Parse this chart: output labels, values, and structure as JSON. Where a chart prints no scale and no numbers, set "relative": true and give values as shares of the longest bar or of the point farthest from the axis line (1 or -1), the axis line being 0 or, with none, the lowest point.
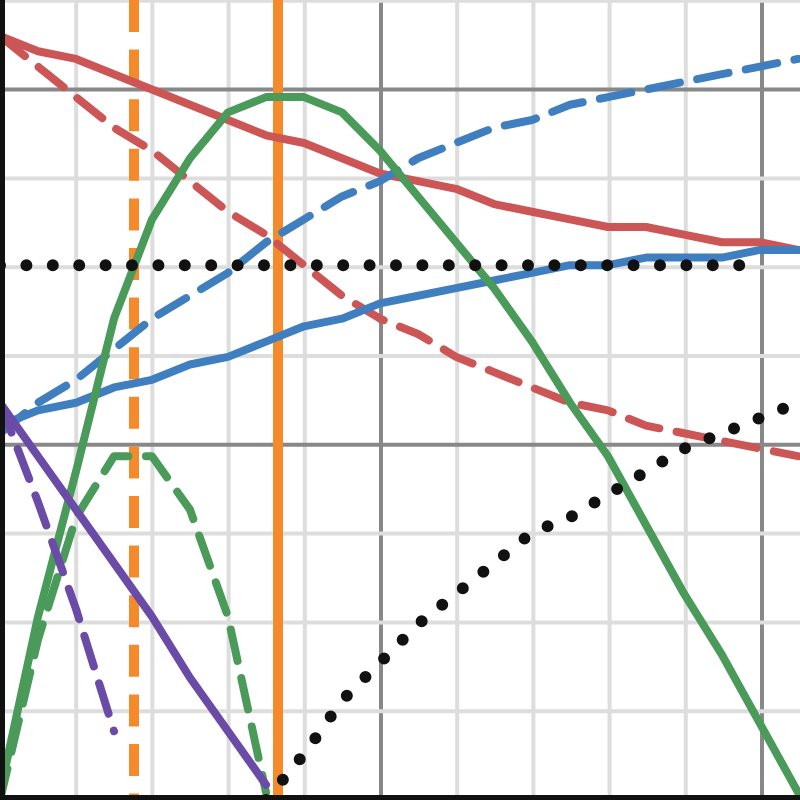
{
  "chart_data": {
    "type": "line",
    "relative": true,
    "grid": true,
    "marker": "none",
    "categories": [
      null,
      null,
      null,
      null,
      null,
      null,
      null,
      null,
      null,
      null,
      null,
      null,
      null,
      null,
      null,
      null,
      null,
      null,
      null,
      null,
      null,
      null
    ],
    "series": [
      {
        "color": "#cc5555",
        "line_style": "solid",
        "values": [
          1,
          0.98,
          0.97,
          0.95,
          0.93,
          0.91,
          0.89,
          0.87,
          0.86,
          0.84,
          0.82,
          0.81,
          0.8,
          0.78,
          0.77,
          0.76,
          0.75,
          0.75,
          0.74,
          0.73,
          0.73,
          0.72
        ]
      },
      {
        "color": "#cc5555",
        "line_style": "dashed",
        "values": [
          1,
          0.96,
          0.92,
          0.88,
          0.85,
          0.81,
          0.77,
          0.74,
          0.7,
          0.66,
          0.63,
          0.61,
          0.58,
          0.56,
          0.54,
          0.52,
          0.51,
          0.49,
          0.48,
          0.47,
          0.46,
          0.45
        ]
      },
      {
        "color": "#3f7fbf",
        "line_style": "solid",
        "values": [
          0.49,
          0.51,
          0.52,
          0.54,
          0.55,
          0.57,
          0.58,
          0.6,
          0.62,
          0.63,
          0.65,
          0.66,
          0.67,
          0.68,
          0.69,
          0.7,
          0.7,
          0.71,
          0.71,
          0.71,
          0.72,
          0.72
        ]
      },
      {
        "color": "#3f7fbf",
        "line_style": "dashed",
        "values": [
          0.48,
          0.52,
          0.55,
          0.59,
          0.63,
          0.66,
          0.69,
          0.73,
          0.76,
          0.79,
          0.81,
          0.84,
          0.86,
          0.88,
          0.89,
          0.91,
          0.92,
          0.93,
          0.94,
          0.95,
          0.96,
          0.97
        ]
      },
      {
        "color": "#4a9a5a",
        "line_style": "solid",
        "values": [
          0.01,
          0.24,
          0.43,
          0.63,
          0.76,
          0.84,
          0.9,
          0.92,
          0.92,
          0.9,
          0.85,
          0.79,
          0.73,
          0.67,
          0.6,
          0.52,
          0.45,
          0.36,
          0.27,
          0.19,
          0.1,
          0.01
        ]
      },
      {
        "color": "#4a9a5a",
        "line_style": "dashed",
        "values": [
          0,
          0.21,
          0.37,
          0.45,
          0.45,
          0.38,
          0.24,
          0.01,
          null,
          null,
          null,
          null,
          null,
          null,
          null,
          null,
          null,
          null,
          null,
          null,
          null,
          null
        ]
      },
      {
        "color": "#6a4ca8",
        "line_style": "solid",
        "values": [
          0.52,
          0.45,
          0.38,
          0.31,
          0.24,
          0.16,
          0.09,
          0.02,
          null,
          null,
          null,
          null,
          null,
          null,
          null,
          null,
          null,
          null,
          null,
          null,
          null,
          null
        ]
      },
      {
        "color": "#6a4ca8",
        "line_style": "dashed",
        "values": [
          0.52,
          0.39,
          0.25,
          0.09,
          null,
          null,
          null,
          null,
          null,
          null,
          null,
          null,
          null,
          null,
          null,
          null,
          null,
          null,
          null,
          null,
          null,
          null
        ]
      },
      {
        "color": "#111111",
        "line_style": "dotted",
        "values": [
          0.7,
          0.7,
          0.7,
          0.7,
          0.7,
          0.7,
          0.7,
          0.7,
          0.7,
          0.7,
          0.7,
          0.7,
          0.7,
          0.7,
          0.7,
          0.7,
          0.7,
          0.7,
          0.7,
          0.7,
          0.7,
          null
        ]
      },
      {
        "color": "#111111",
        "line_style": "dotted",
        "values": [
          null,
          null,
          null,
          null,
          null,
          null,
          null,
          0,
          0.06,
          0.13,
          0.18,
          0.23,
          0.27,
          0.31,
          0.35,
          0.37,
          0.4,
          0.43,
          0.46,
          0.48,
          0.5,
          0.52
        ]
      }
    ]
  }
}
